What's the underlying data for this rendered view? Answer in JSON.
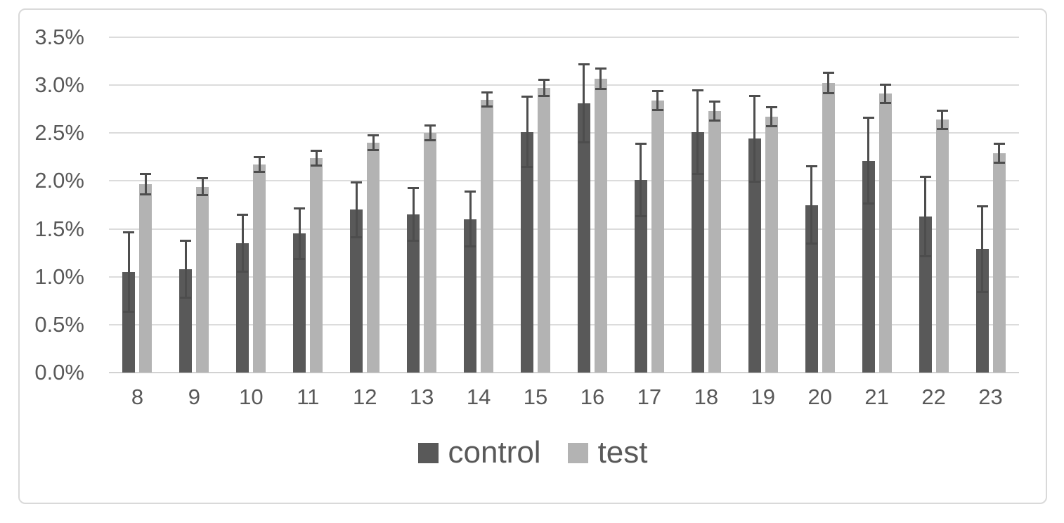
{
  "chart_data": {
    "type": "bar",
    "title": "",
    "xlabel": "",
    "ylabel": "",
    "categories": [
      "8",
      "9",
      "10",
      "11",
      "12",
      "13",
      "14",
      "15",
      "16",
      "17",
      "18",
      "19",
      "20",
      "21",
      "22",
      "23"
    ],
    "series": [
      {
        "name": "control",
        "color": "#595959",
        "values": [
          1.05,
          1.08,
          1.35,
          1.45,
          1.7,
          1.65,
          1.6,
          2.51,
          2.81,
          2.01,
          2.51,
          2.44,
          1.75,
          2.21,
          1.63,
          1.29
        ],
        "errors": [
          0.42,
          0.3,
          0.3,
          0.27,
          0.29,
          0.28,
          0.29,
          0.37,
          0.41,
          0.38,
          0.44,
          0.45,
          0.41,
          0.45,
          0.42,
          0.45
        ]
      },
      {
        "name": "test",
        "color": "#b3b3b3",
        "values": [
          1.97,
          1.94,
          2.17,
          2.24,
          2.4,
          2.5,
          2.85,
          2.97,
          3.07,
          2.84,
          2.73,
          2.67,
          3.02,
          2.91,
          2.64,
          2.29
        ],
        "errors": [
          0.11,
          0.09,
          0.08,
          0.08,
          0.08,
          0.08,
          0.08,
          0.09,
          0.11,
          0.1,
          0.1,
          0.1,
          0.11,
          0.1,
          0.1,
          0.1
        ]
      }
    ],
    "y_ticks": [
      "0.0%",
      "0.5%",
      "1.0%",
      "1.5%",
      "2.0%",
      "2.5%",
      "3.0%",
      "3.5%"
    ],
    "ylim": [
      0,
      3.5
    ],
    "y_step": 0.5,
    "grid": true,
    "legend_position": "bottom",
    "error_bars": true,
    "style": {
      "error_bar_color": "#4d4d4d",
      "gridline_color": "#dcdcdc",
      "axis_line_color": "#d2d2d2",
      "frame_border_color": "#d9d9d9",
      "label_color": "#595959",
      "background": "#ffffff"
    }
  }
}
